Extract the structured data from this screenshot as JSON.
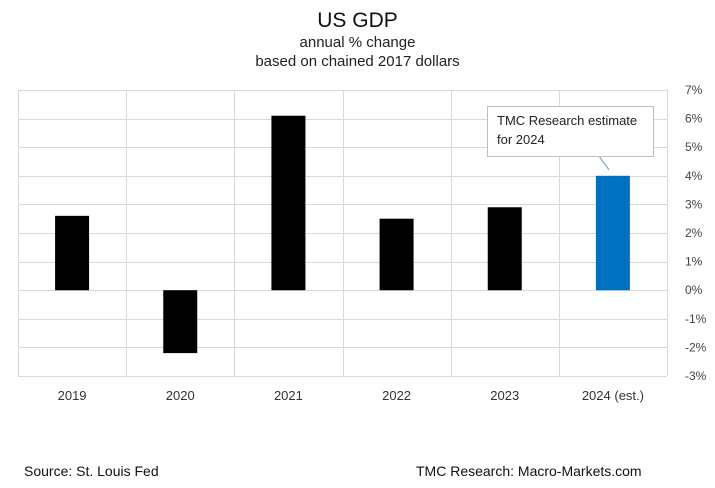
{
  "chart_data": {
    "type": "bar",
    "title": "US GDP",
    "subtitle_lines": [
      "annual % change",
      "based on chained 2017 dollars"
    ],
    "categories": [
      "2019",
      "2020",
      "2021",
      "2022",
      "2023",
      "2024 (est.)"
    ],
    "values": [
      2.6,
      -2.2,
      6.1,
      2.5,
      2.9,
      4.0
    ],
    "bar_colors": [
      "#000000",
      "#000000",
      "#000000",
      "#000000",
      "#000000",
      "#0070C0"
    ],
    "ylim": [
      -3,
      7
    ],
    "yticks": [
      7,
      6,
      5,
      4,
      3,
      2,
      1,
      0,
      -1,
      -2,
      -3
    ],
    "ytick_suffix": "%",
    "grid": true,
    "y_axis_side": "right",
    "annotation": {
      "lines": [
        "TMC Research estimate",
        "for 2024"
      ],
      "target_category": "2024 (est.)"
    },
    "xlabel": "",
    "ylabel": ""
  },
  "footer": {
    "source": "Source: St. Louis Fed",
    "credit": "TMC Research: Macro-Markets.com"
  }
}
